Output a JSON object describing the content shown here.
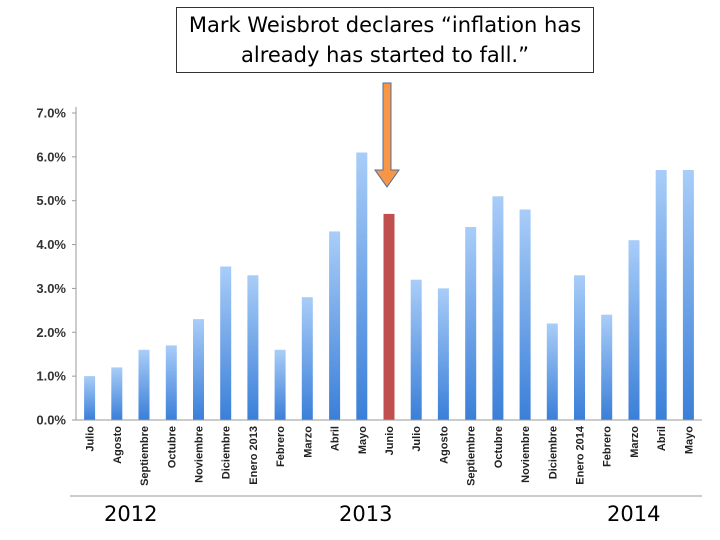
{
  "annotation": {
    "line1": "Mark Weisbrot declares “inflation has",
    "line2": "already has started to fall.”"
  },
  "years": [
    "2012",
    "2013",
    "2014"
  ],
  "colors": {
    "bar_top": "#a9cdf8",
    "bar_bottom": "#3a7fd8",
    "highlight": "#c0504d",
    "arrow_fill": "#f79646",
    "arrow_stroke": "#4f6f9f",
    "axis": "#9a9a9a"
  },
  "chart_data": {
    "type": "bar",
    "categories": [
      "Julio",
      "Agosto",
      "Septiembre",
      "Octubre",
      "Noviembre",
      "Diciembre",
      "Enero 2013",
      "Febrero",
      "Marzo",
      "Abril",
      "Mayo",
      "Junio",
      "Julio",
      "Agosto",
      "Septiembre",
      "Octubre",
      "Noviembre",
      "Diciembre",
      "Enero 2014",
      "Febrero",
      "Marzo",
      "Abril",
      "Mayo"
    ],
    "values": [
      1.0,
      1.2,
      1.6,
      1.7,
      2.3,
      3.5,
      3.3,
      1.6,
      2.8,
      4.3,
      6.1,
      4.7,
      3.2,
      3.0,
      4.4,
      5.1,
      4.8,
      2.2,
      3.3,
      2.4,
      4.1,
      5.7,
      5.7
    ],
    "highlight_index": 11,
    "yticks": [
      "0.0%",
      "1.0%",
      "2.0%",
      "3.0%",
      "4.0%",
      "5.0%",
      "6.0%",
      "7.0%"
    ],
    "ylim": [
      0,
      7
    ],
    "title": "",
    "xlabel": "",
    "ylabel": "",
    "grid": false
  }
}
